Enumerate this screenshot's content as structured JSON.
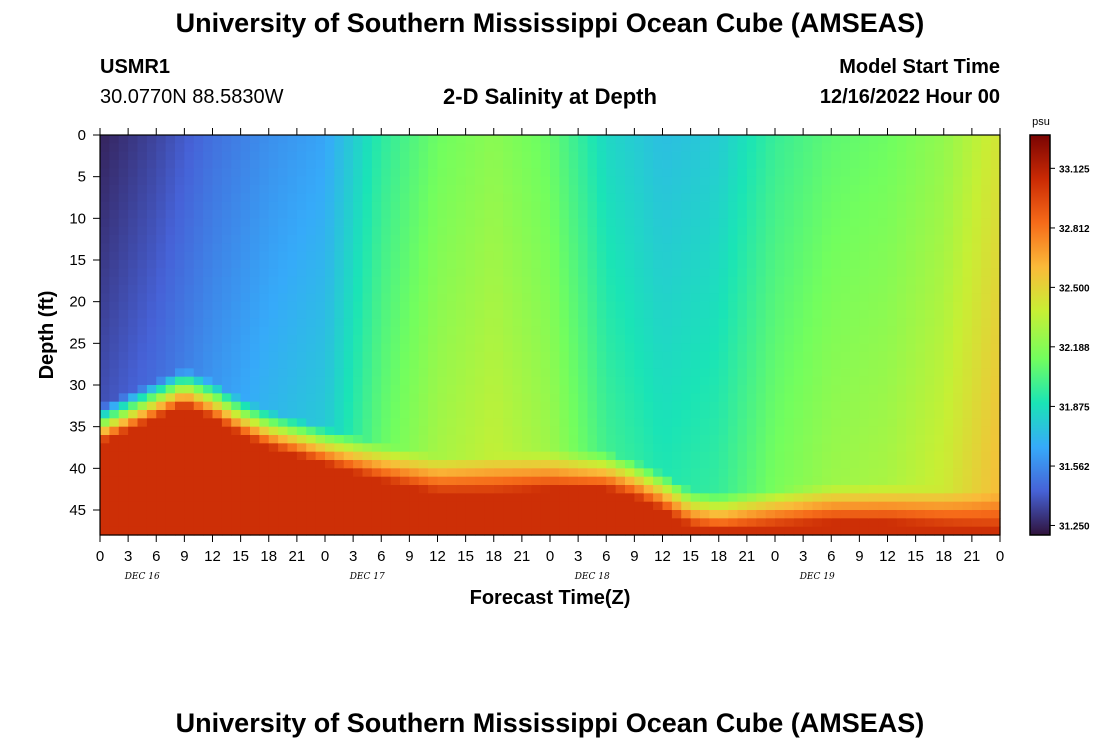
{
  "page": {
    "title_top": "University of Southern Mississippi Ocean Cube (AMSEAS)",
    "title_bottom": "University of Southern Mississippi Ocean Cube (AMSEAS)"
  },
  "station": {
    "id": "USMR1",
    "coords": "30.0770N  88.5830W"
  },
  "plot_subtitle": "2-D Salinity at Depth",
  "model_start": {
    "label": "Model Start Time",
    "value": "12/16/2022 Hour 00"
  },
  "chart_data": {
    "type": "heatmap",
    "title": "2-D Salinity at Depth",
    "xlabel": "Forecast Time(Z)",
    "ylabel": "Depth (ft)",
    "x_range_hours": [
      0,
      96
    ],
    "y_range_ft": [
      0,
      48
    ],
    "x_ticks": [
      "0",
      "3",
      "6",
      "9",
      "12",
      "15",
      "18",
      "21",
      "0",
      "3",
      "6",
      "9",
      "12",
      "15",
      "18",
      "21",
      "0",
      "3",
      "6",
      "9",
      "12",
      "15",
      "18",
      "21",
      "0",
      "3",
      "6",
      "9",
      "12",
      "15",
      "18",
      "21",
      "0"
    ],
    "y_ticks": [
      "0",
      "5",
      "10",
      "15",
      "20",
      "25",
      "30",
      "35",
      "40",
      "45"
    ],
    "day_labels": [
      "DEC 16",
      "DEC 17",
      "DEC 18",
      "DEC 19"
    ],
    "colorbar": {
      "unit": "psu",
      "range": [
        31.2,
        33.3
      ],
      "ticks": [
        "33.125",
        "32.812",
        "32.500",
        "32.188",
        "31.875",
        "31.562",
        "31.250"
      ],
      "colors": [
        "#30123b",
        "#4662d7",
        "#36aaf9",
        "#1ae4b6",
        "#72fe5e",
        "#c7ef34",
        "#faba39",
        "#f66b19",
        "#ca2a04",
        "#7a0403"
      ]
    },
    "surface_salinity_by_hour": [
      {
        "t": 0,
        "s": 31.25
      },
      {
        "t": 6,
        "s": 31.35
      },
      {
        "t": 12,
        "s": 31.48
      },
      {
        "t": 18,
        "s": 31.58
      },
      {
        "t": 24,
        "s": 31.65
      },
      {
        "t": 30,
        "s": 31.95
      },
      {
        "t": 36,
        "s": 32.12
      },
      {
        "t": 42,
        "s": 32.2
      },
      {
        "t": 48,
        "s": 32.1
      },
      {
        "t": 54,
        "s": 31.85
      },
      {
        "t": 60,
        "s": 31.75
      },
      {
        "t": 66,
        "s": 31.8
      },
      {
        "t": 72,
        "s": 31.98
      },
      {
        "t": 78,
        "s": 32.08
      },
      {
        "t": 84,
        "s": 32.12
      },
      {
        "t": 90,
        "s": 32.22
      },
      {
        "t": 96,
        "s": 32.42
      }
    ],
    "bottom_layer_top_ft": [
      {
        "t": 0,
        "d": 36
      },
      {
        "t": 6,
        "d": 33
      },
      {
        "t": 9,
        "d": 31.5
      },
      {
        "t": 12,
        "d": 33
      },
      {
        "t": 15,
        "d": 35
      },
      {
        "t": 18,
        "d": 36.5
      },
      {
        "t": 24,
        "d": 38.5
      },
      {
        "t": 30,
        "d": 40.5
      },
      {
        "t": 36,
        "d": 42
      },
      {
        "t": 42,
        "d": 42
      },
      {
        "t": 48,
        "d": 41.5
      },
      {
        "t": 54,
        "d": 41.5
      },
      {
        "t": 57,
        "d": 42.5
      },
      {
        "t": 60,
        "d": 44
      },
      {
        "t": 63,
        "d": 46
      },
      {
        "t": 66,
        "d": 46.5
      },
      {
        "t": 72,
        "d": 46
      },
      {
        "t": 78,
        "d": 45.5
      },
      {
        "t": 84,
        "d": 45.5
      },
      {
        "t": 90,
        "d": 46
      },
      {
        "t": 96,
        "d": 46.5
      }
    ],
    "bottom_layer_salinity": 33.05
  }
}
